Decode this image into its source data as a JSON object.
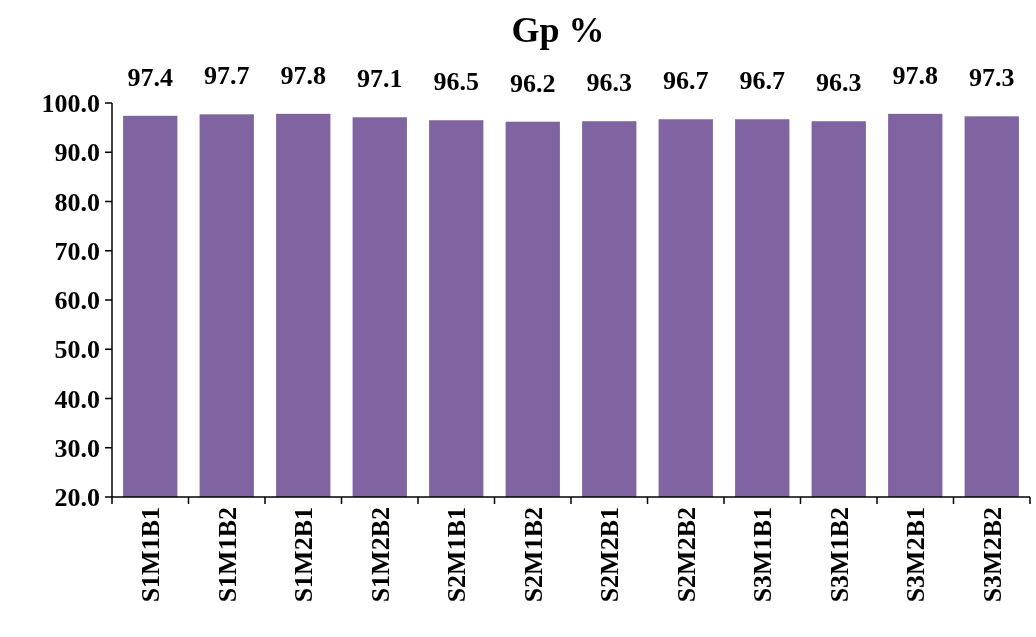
{
  "chart_data": {
    "type": "bar",
    "title": "Gp %",
    "categories": [
      "S1M1B1",
      "S1M1B2",
      "S1M2B1",
      "S1M2B2",
      "S2M1B1",
      "S2M1B2",
      "S2M2B1",
      "S2M2B2",
      "S3M1B1",
      "S3M1B2",
      "S3M2B1",
      "S3M2B2"
    ],
    "values": [
      97.4,
      97.7,
      97.8,
      97.1,
      96.5,
      96.2,
      96.3,
      96.7,
      96.7,
      96.3,
      97.8,
      97.3
    ],
    "color": "#8064a2",
    "ylim": [
      20,
      100
    ],
    "yticks": [
      {
        "value": 20,
        "label": "20.0"
      },
      {
        "value": 30,
        "label": "30.0"
      },
      {
        "value": 40,
        "label": "40.0"
      },
      {
        "value": 50,
        "label": "50.0"
      },
      {
        "value": 60,
        "label": "60.0"
      },
      {
        "value": 70,
        "label": "70.0"
      },
      {
        "value": 80,
        "label": "80.0"
      },
      {
        "value": 90,
        "label": "90.0"
      },
      {
        "value": 100,
        "label": "100.0"
      }
    ],
    "data_labels": true,
    "grid": false
  }
}
